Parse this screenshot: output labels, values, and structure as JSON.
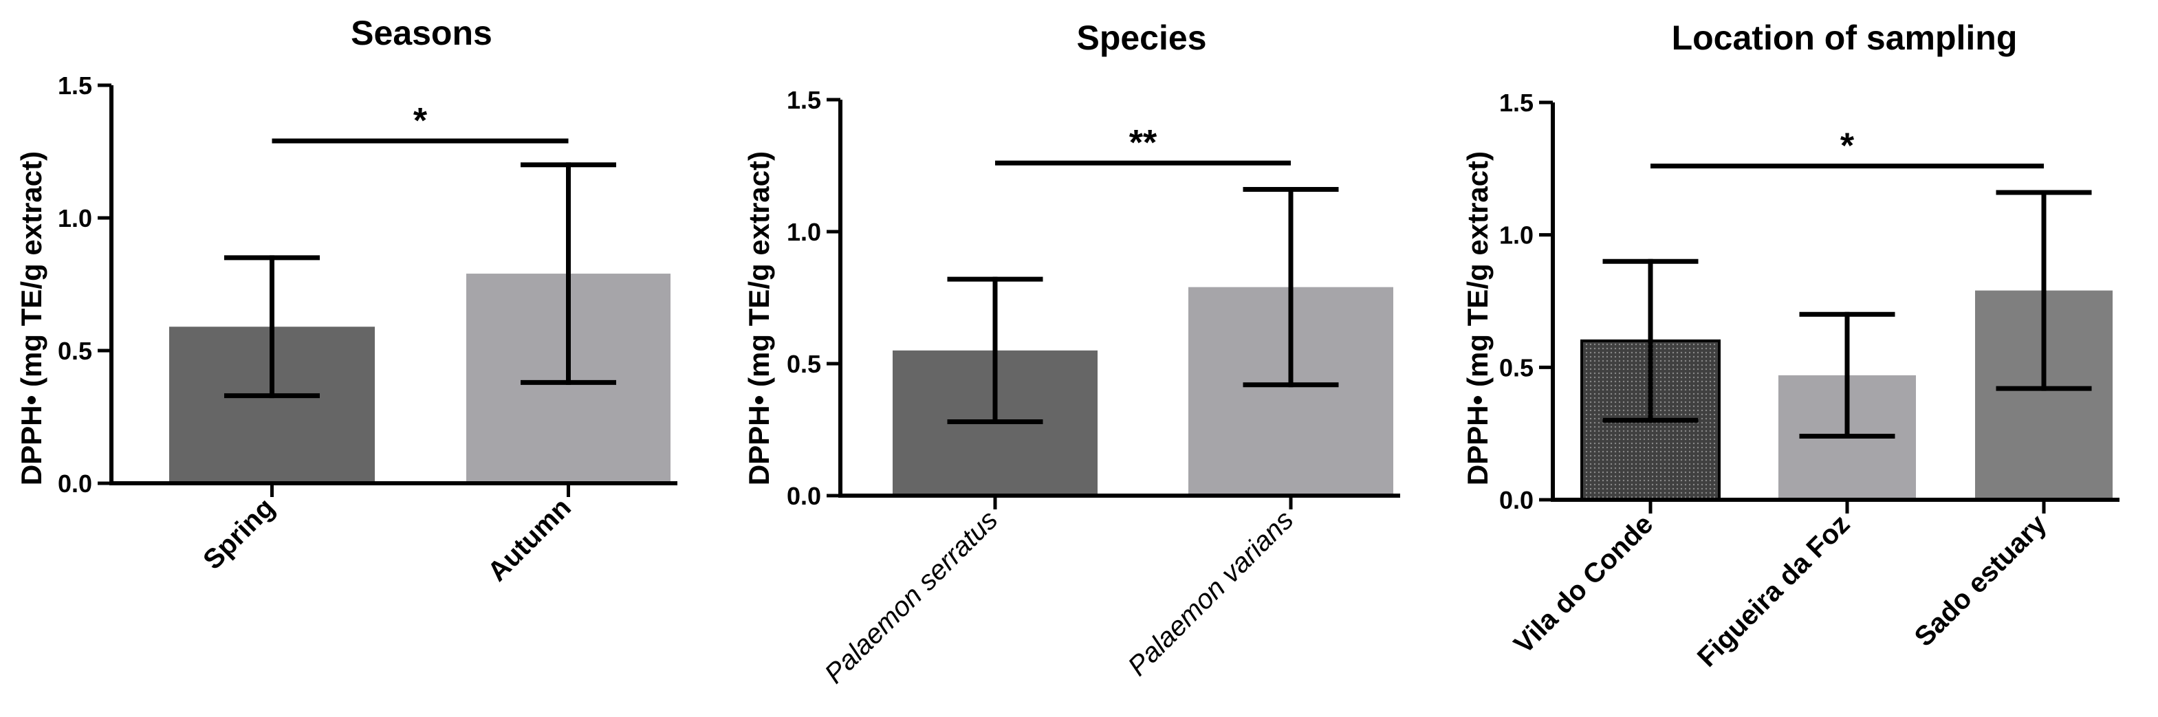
{
  "chart_data": [
    {
      "type": "bar",
      "title": "Seasons",
      "ylabel": "DPPH• (mg TE/g extract)",
      "ylim": [
        0,
        1.5
      ],
      "yticks": [
        "0.0",
        "0.5",
        "1.0",
        "1.5"
      ],
      "category_style": "bold",
      "categories": [
        "Spring",
        "Autumn"
      ],
      "values": [
        0.59,
        0.79
      ],
      "errors": [
        0.26,
        0.41
      ],
      "colors": [
        "#666666",
        "#a6a5a9"
      ],
      "significance": [
        {
          "from": 0,
          "to": 1,
          "label": "*",
          "y": 1.29
        }
      ]
    },
    {
      "type": "bar",
      "title": "Species",
      "ylabel": "DPPH• (mg TE/g extract)",
      "ylim": [
        0,
        1.5
      ],
      "yticks": [
        "0.0",
        "0.5",
        "1.0",
        "1.5"
      ],
      "category_style": "italic",
      "categories": [
        "Palaemon serratus",
        "Palaemon varians"
      ],
      "values": [
        0.55,
        0.79
      ],
      "errors": [
        0.27,
        0.37
      ],
      "colors": [
        "#666666",
        "#a6a5a9"
      ],
      "significance": [
        {
          "from": 0,
          "to": 1,
          "label": "**",
          "y": 1.26
        }
      ]
    },
    {
      "type": "bar",
      "title": "Location of sampling",
      "ylabel": "DPPH• (mg TE/g extract)",
      "ylim": [
        0,
        1.5
      ],
      "yticks": [
        "0.0",
        "0.5",
        "1.0",
        "1.5"
      ],
      "category_style": "bold",
      "categories": [
        "Vila do Conde",
        "Figueira da Foz",
        "Sado estuary"
      ],
      "values": [
        0.6,
        0.47,
        0.79
      ],
      "errors": [
        0.3,
        0.23,
        0.37
      ],
      "colors": [
        "#3f3f3f",
        "#a6a5a9",
        "#7f7f7f"
      ],
      "significance": [
        {
          "from": 0,
          "to": 2,
          "label": "*",
          "y": 1.26
        }
      ]
    }
  ]
}
